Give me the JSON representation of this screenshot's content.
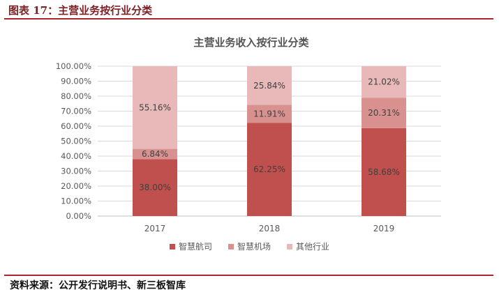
{
  "figure": {
    "label": "图表 17：主营业务按行业分类",
    "source": "资料来源：公开发行说明书、新三板智库"
  },
  "chart_data": {
    "type": "bar",
    "stacked": true,
    "title": "主营业务收入按行业分类",
    "categories": [
      "2017",
      "2018",
      "2019"
    ],
    "series": [
      {
        "name": "智慧航司",
        "color": "#c0504d",
        "values": [
          38.0,
          62.25,
          58.68
        ],
        "labels": [
          "38.00%",
          "62.25%",
          "58.68%"
        ]
      },
      {
        "name": "智慧机场",
        "color": "#d99190",
        "values": [
          6.84,
          11.91,
          20.31
        ],
        "labels": [
          "6.84%",
          "11.91%",
          "20.31%"
        ]
      },
      {
        "name": "其他行业",
        "color": "#e8b9b8",
        "values": [
          55.16,
          25.84,
          21.02
        ],
        "labels": [
          "55.16%",
          "25.84%",
          "21.02%"
        ]
      }
    ],
    "ylim": [
      0,
      100
    ],
    "yticks": [
      "0.00%",
      "10.00%",
      "20.00%",
      "30.00%",
      "40.00%",
      "50.00%",
      "60.00%",
      "70.00%",
      "80.00%",
      "90.00%",
      "100.00%"
    ],
    "grid": true,
    "legend": "bottom"
  }
}
